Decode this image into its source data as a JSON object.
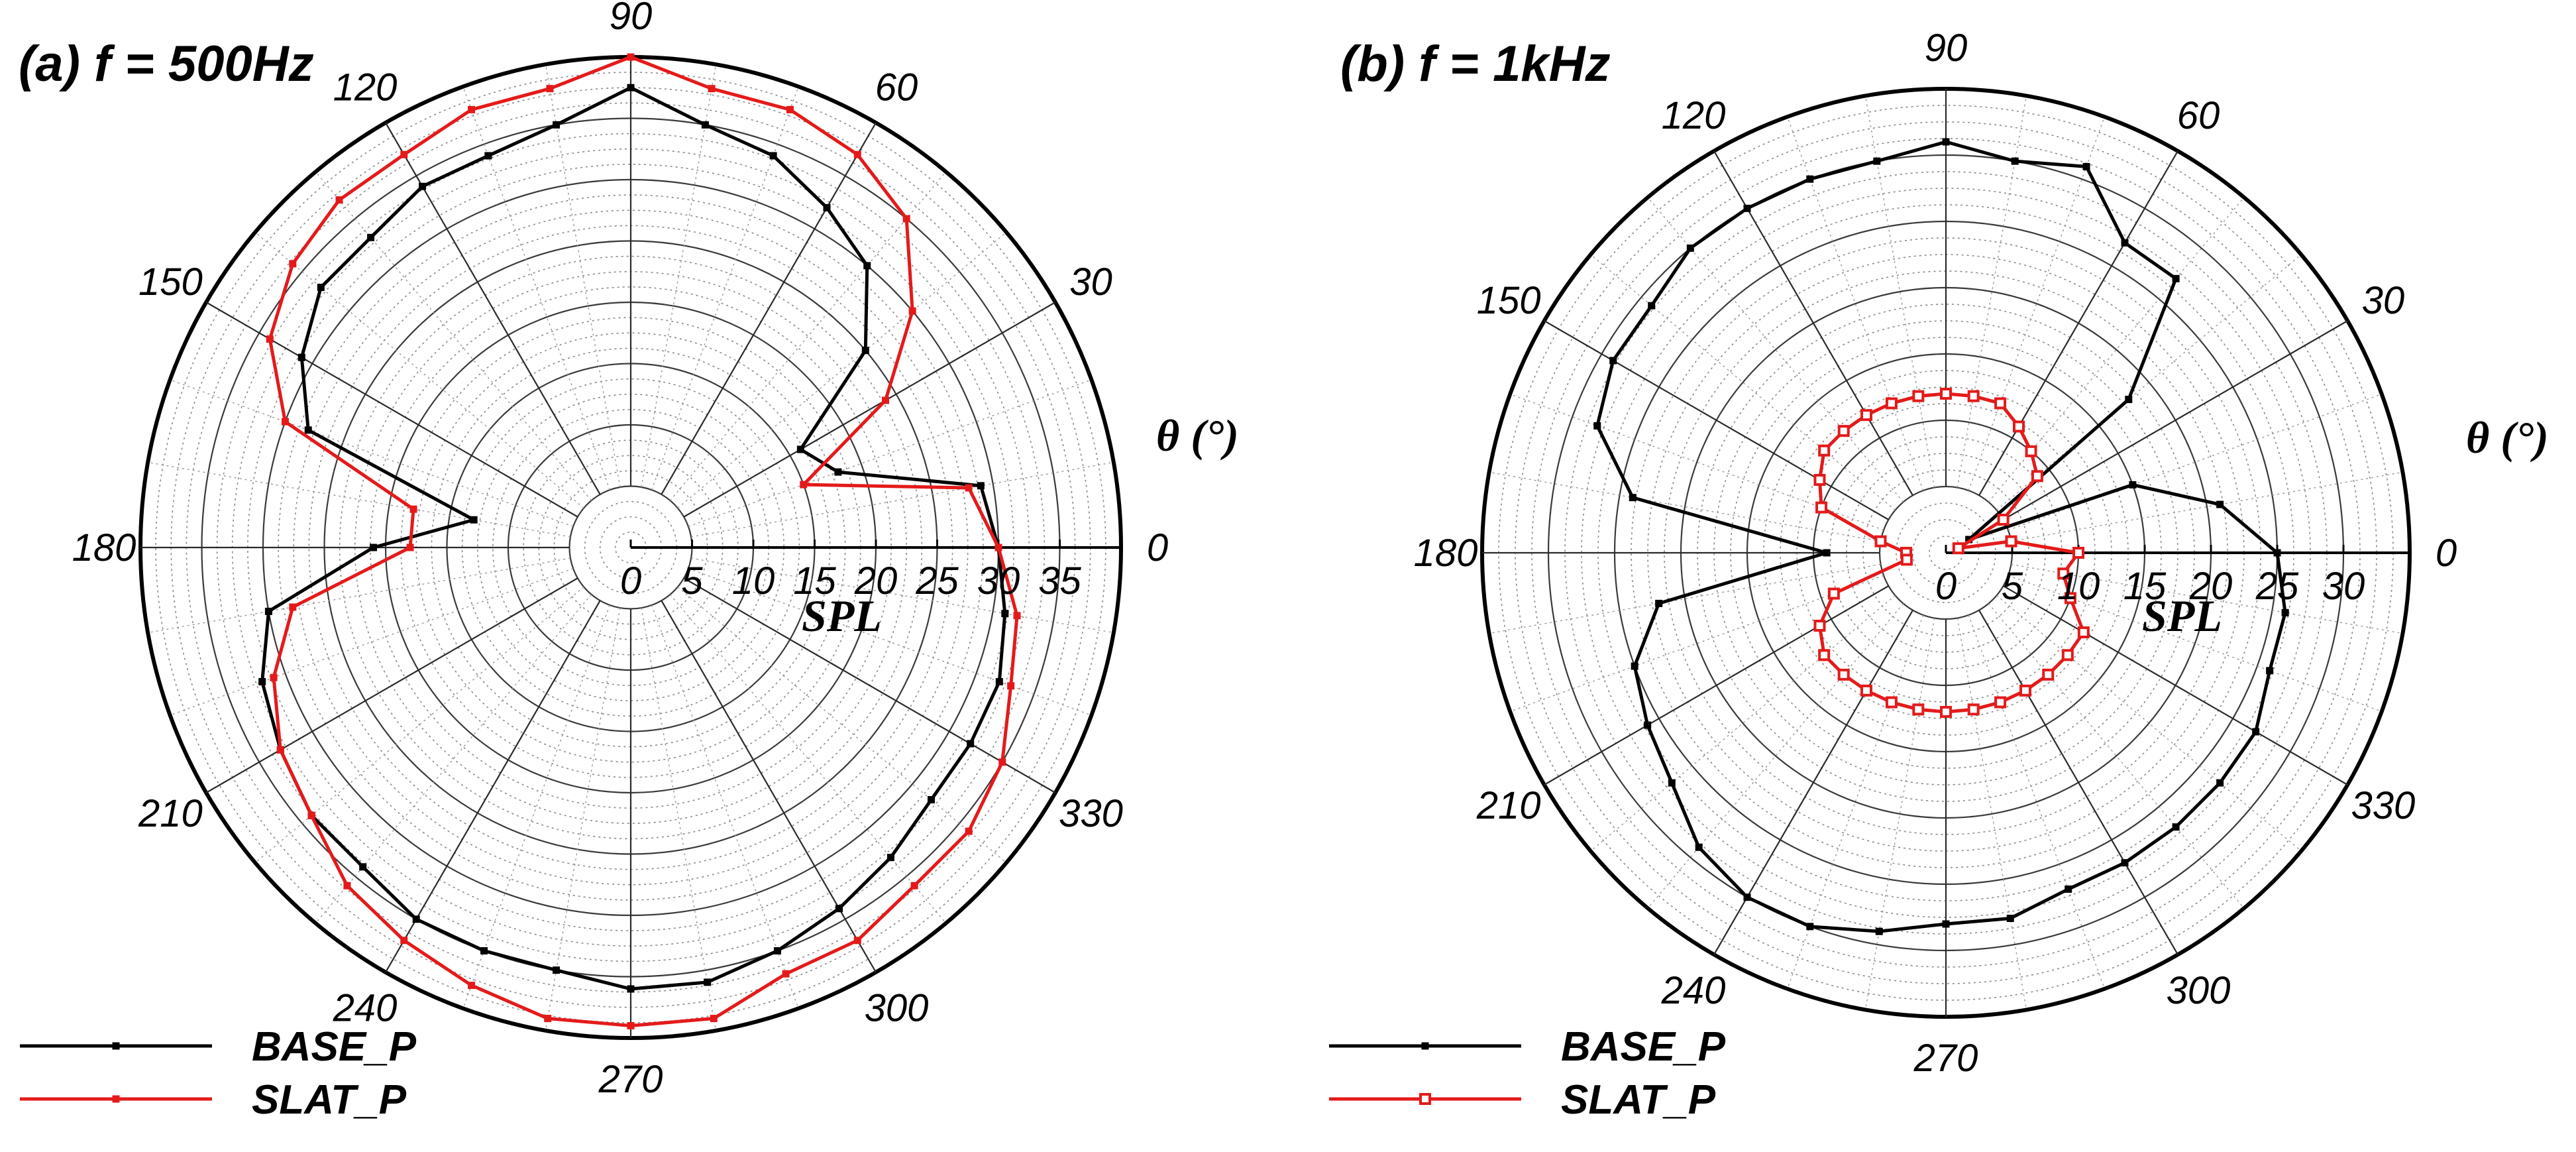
{
  "chart_data": [
    {
      "type": "polar-line",
      "title": "(a) f = 500Hz",
      "theta_label": "θ (°)",
      "r_label": "SPL",
      "r_range": [
        0,
        40
      ],
      "r_ticks": [
        0,
        5,
        10,
        15,
        20,
        25,
        30,
        35
      ],
      "theta_ticks": [
        0,
        30,
        60,
        90,
        120,
        150,
        180,
        210,
        240,
        270,
        300,
        330
      ],
      "theta_step": 10,
      "grid": true,
      "legend": "bottom-left",
      "series": [
        {
          "name": "BASE_P",
          "color": "#000000",
          "marker": "small-square",
          "points": [
            [
              0,
              30
            ],
            [
              10,
              29
            ],
            [
              20,
              18
            ],
            [
              30,
              16
            ],
            [
              40,
              25
            ],
            [
              50,
              30
            ],
            [
              60,
              32
            ],
            [
              70,
              34
            ],
            [
              80,
              35
            ],
            [
              90,
              37.5
            ],
            [
              100,
              35
            ],
            [
              110,
              34
            ],
            [
              120,
              34
            ],
            [
              130,
              33
            ],
            [
              140,
              33
            ],
            [
              150,
              31
            ],
            [
              160,
              28
            ],
            [
              170,
              13
            ],
            [
              180,
              21
            ],
            [
              190,
              30
            ],
            [
              200,
              32
            ],
            [
              210,
              33
            ],
            [
              220,
              34
            ],
            [
              230,
              34
            ],
            [
              240,
              35
            ],
            [
              250,
              35
            ],
            [
              260,
              35
            ],
            [
              270,
              36
            ],
            [
              280,
              36
            ],
            [
              290,
              35
            ],
            [
              300,
              34
            ],
            [
              310,
              33
            ],
            [
              320,
              32
            ],
            [
              330,
              32
            ],
            [
              340,
              32
            ],
            [
              350,
              31
            ],
            [
              360,
              30
            ]
          ]
        },
        {
          "name": "SLAT_P",
          "color": "#e41a1a",
          "marker": "small-square",
          "points": [
            [
              0,
              30
            ],
            [
              10,
              28
            ],
            [
              20,
              15
            ],
            [
              30,
              24
            ],
            [
              40,
              30
            ],
            [
              50,
              35
            ],
            [
              60,
              37
            ],
            [
              70,
              38
            ],
            [
              80,
              38
            ],
            [
              90,
              40
            ],
            [
              100,
              38
            ],
            [
              110,
              38
            ],
            [
              120,
              37
            ],
            [
              130,
              37
            ],
            [
              140,
              36
            ],
            [
              150,
              34
            ],
            [
              160,
              30
            ],
            [
              170,
              18
            ],
            [
              180,
              18
            ],
            [
              190,
              28
            ],
            [
              200,
              31
            ],
            [
              210,
              33
            ],
            [
              220,
              34
            ],
            [
              230,
              36
            ],
            [
              240,
              37
            ],
            [
              250,
              38
            ],
            [
              260,
              39
            ],
            [
              270,
              39
            ],
            [
              280,
              39
            ],
            [
              290,
              37
            ],
            [
              300,
              37
            ],
            [
              310,
              36
            ],
            [
              320,
              36
            ],
            [
              330,
              35
            ],
            [
              340,
              33
            ],
            [
              350,
              32
            ],
            [
              360,
              30
            ]
          ]
        }
      ]
    },
    {
      "type": "polar-line",
      "title": "(b) f = 1kHz",
      "theta_label": "θ (°)",
      "r_label": "SPL",
      "r_range": [
        0,
        35
      ],
      "r_ticks": [
        0,
        5,
        10,
        15,
        20,
        25,
        30
      ],
      "theta_ticks": [
        0,
        30,
        60,
        90,
        120,
        150,
        180,
        210,
        240,
        270,
        300,
        330
      ],
      "theta_step": 10,
      "grid": true,
      "legend": "bottom-left",
      "series": [
        {
          "name": "BASE_P",
          "color": "#000000",
          "marker": "small-square",
          "points": [
            [
              0,
              25
            ],
            [
              10,
              21
            ],
            [
              20,
              15
            ],
            [
              30,
              2
            ],
            [
              40,
              18
            ],
            [
              50,
              27
            ],
            [
              60,
              27
            ],
            [
              70,
              31
            ],
            [
              80,
              30
            ],
            [
              90,
              31
            ],
            [
              100,
              30
            ],
            [
              110,
              30
            ],
            [
              120,
              30
            ],
            [
              130,
              30
            ],
            [
              140,
              29
            ],
            [
              150,
              29
            ],
            [
              160,
              28
            ],
            [
              170,
              24
            ],
            [
              180,
              9
            ],
            [
              190,
              22
            ],
            [
              200,
              25
            ],
            [
              210,
              26
            ],
            [
              220,
              27
            ],
            [
              230,
              29
            ],
            [
              240,
              30
            ],
            [
              250,
              30
            ],
            [
              260,
              29
            ],
            [
              270,
              28
            ],
            [
              280,
              28
            ],
            [
              290,
              27
            ],
            [
              300,
              27
            ],
            [
              310,
              27
            ],
            [
              320,
              27
            ],
            [
              330,
              27
            ],
            [
              340,
              26
            ],
            [
              350,
              26
            ],
            [
              360,
              25
            ]
          ]
        },
        {
          "name": "SLAT_P",
          "color": "#e41a1a",
          "marker": "square",
          "points": [
            [
              0,
              10
            ],
            [
              10,
              5
            ],
            [
              20,
              1
            ],
            [
              30,
              5
            ],
            [
              40,
              9
            ],
            [
              50,
              10
            ],
            [
              60,
              11
            ],
            [
              70,
              12
            ],
            [
              80,
              12
            ],
            [
              90,
              12
            ],
            [
              100,
              12
            ],
            [
              110,
              12
            ],
            [
              120,
              12
            ],
            [
              130,
              12
            ],
            [
              140,
              12
            ],
            [
              150,
              11
            ],
            [
              160,
              10
            ],
            [
              170,
              5
            ],
            [
              180,
              3
            ],
            [
              190,
              3
            ],
            [
              200,
              9
            ],
            [
              210,
              11
            ],
            [
              220,
              12
            ],
            [
              230,
              12
            ],
            [
              240,
              12
            ],
            [
              250,
              12
            ],
            [
              260,
              12
            ],
            [
              270,
              12
            ],
            [
              280,
              12
            ],
            [
              290,
              12
            ],
            [
              300,
              12
            ],
            [
              310,
              12
            ],
            [
              320,
              12
            ],
            [
              330,
              12
            ],
            [
              340,
              10
            ],
            [
              350,
              9
            ],
            [
              360,
              10
            ]
          ]
        }
      ]
    }
  ]
}
